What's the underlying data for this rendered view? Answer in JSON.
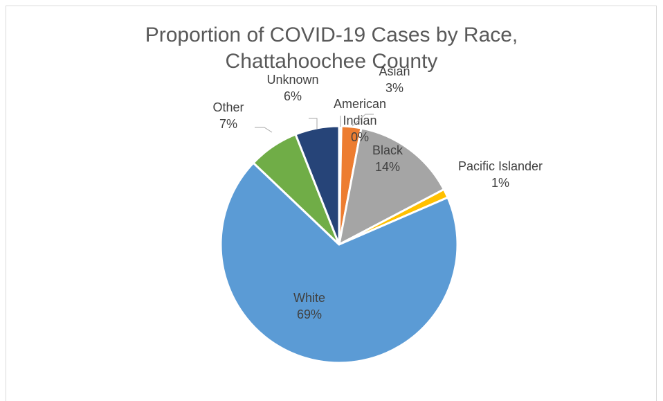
{
  "chart_data": {
    "type": "pie",
    "title": "Proportion of COVID-19 Cases by Race, Chattahoochee County",
    "title_lines": [
      "Proportion of COVID-19 Cases by Race,",
      "Chattahoochee County"
    ],
    "slices": [
      {
        "category": "American Indian",
        "label_lines": [
          "American",
          "Indian"
        ],
        "percent_label": "0%",
        "value": 0.3,
        "color": "#4472c4"
      },
      {
        "category": "Asian",
        "label_lines": [
          "Asian"
        ],
        "percent_label": "3%",
        "value": 2.7,
        "color": "#ed7d31"
      },
      {
        "category": "Black",
        "label_lines": [
          "Black"
        ],
        "percent_label": "14%",
        "value": 14.3,
        "color": "#a5a5a5"
      },
      {
        "category": "Pacific Islander",
        "label_lines": [
          "Pacific Islander"
        ],
        "percent_label": "1%",
        "value": 1.2,
        "color": "#ffc000"
      },
      {
        "category": "White",
        "label_lines": [
          "White"
        ],
        "percent_label": "69%",
        "value": 68.6,
        "color": "#5b9bd5"
      },
      {
        "category": "Other",
        "label_lines": [
          "Other"
        ],
        "percent_label": "7%",
        "value": 6.9,
        "color": "#70ad47"
      },
      {
        "category": "Unknown",
        "label_lines": [
          "Unknown"
        ],
        "percent_label": "6%",
        "value": 6.0,
        "color": "#264478"
      }
    ],
    "legend": "none",
    "start_angle": "12 o'clock",
    "direction": "clockwise"
  }
}
